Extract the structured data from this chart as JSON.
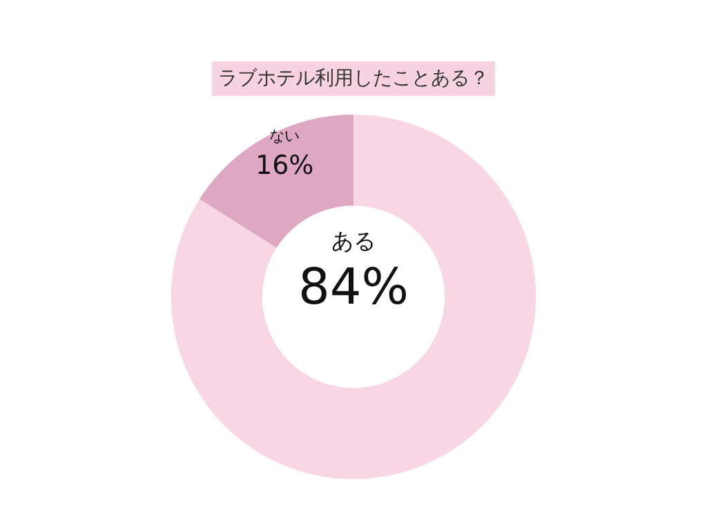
{
  "chart_data": {
    "type": "donut",
    "title": "ラブホテル利用したことある？",
    "categories": [
      "ない",
      "ある"
    ],
    "values": [
      16,
      84
    ],
    "value_labels": [
      "16%",
      "84%"
    ],
    "colors": [
      "#dfa8c2",
      "#f9d6e4"
    ]
  }
}
